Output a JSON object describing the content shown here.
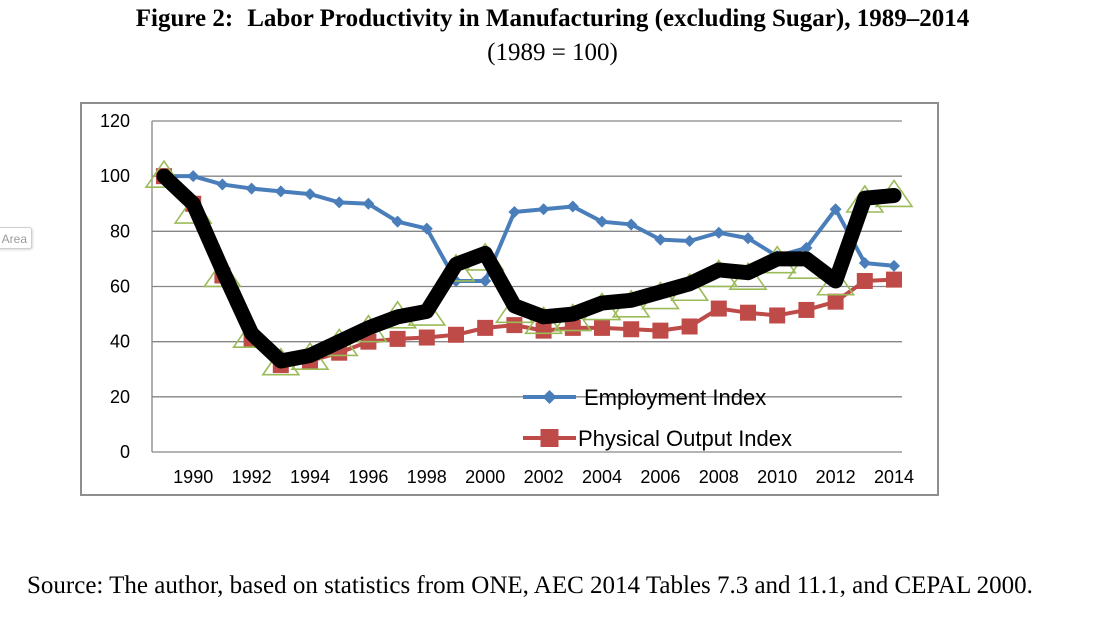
{
  "figure": {
    "label": "Figure 2:",
    "title": "Labor Productivity in Manufacturing (excluding Sugar), 1989–2014",
    "subtitle": "(1989 = 100)"
  },
  "side_tab_label": "Area",
  "source_note": "Source: The author, based on statistics from ONE, AEC 2014 Tables 7.3 and 11.1, and CEPAL 2000.",
  "chart_data": {
    "type": "line",
    "title": "",
    "xlabel": "",
    "ylabel": "",
    "x": [
      1989,
      1990,
      1991,
      1992,
      1993,
      1994,
      1995,
      1996,
      1997,
      1998,
      1999,
      2000,
      2001,
      2002,
      2003,
      2004,
      2005,
      2006,
      2007,
      2008,
      2009,
      2010,
      2011,
      2012,
      2013,
      2014
    ],
    "x_tick_labels": [
      "1990",
      "1992",
      "1994",
      "1996",
      "1998",
      "2000",
      "2002",
      "2004",
      "2006",
      "2008",
      "2010",
      "2012",
      "2014"
    ],
    "y_ticks": [
      0,
      20,
      40,
      60,
      80,
      100,
      120
    ],
    "ylim": [
      0,
      120
    ],
    "grid": "horizontal",
    "legend_position": "lower-right",
    "series": [
      {
        "name": "Employment Index",
        "color": "#4a7ebb",
        "marker": "diamond",
        "values": [
          100,
          100,
          97,
          95.5,
          94.5,
          93.5,
          90.5,
          90,
          83.5,
          81,
          62,
          62,
          87,
          88,
          89,
          83.5,
          82.5,
          77,
          76.5,
          79.5,
          77.5,
          71,
          74,
          88,
          68.5,
          67.5
        ]
      },
      {
        "name": "Physical Output Index",
        "color": "#be4b48",
        "marker": "square",
        "values": [
          100,
          90,
          64,
          41,
          31.5,
          33,
          36,
          40,
          41,
          41.5,
          42.5,
          45,
          46,
          44,
          45,
          45,
          44.5,
          44,
          45.5,
          52,
          50.5,
          49.5,
          51.5,
          54.5,
          62,
          62.5
        ]
      },
      {
        "name": "",
        "color": "#000000",
        "marker": "none",
        "values": [
          100,
          90,
          66,
          43,
          33,
          35,
          40,
          45,
          49,
          51,
          68,
          72,
          53,
          49,
          50,
          54,
          55,
          58,
          61,
          66,
          65,
          70,
          70,
          62,
          92,
          93
        ]
      },
      {
        "name": "",
        "color": "#9bbb59",
        "marker": "triangle-open",
        "values": [
          100,
          87,
          64,
          42,
          32,
          34,
          39,
          44,
          49,
          50,
          66,
          70,
          51,
          47,
          48,
          52,
          53,
          56,
          59,
          64,
          63,
          69,
          67,
          61,
          91,
          93
        ]
      }
    ]
  }
}
